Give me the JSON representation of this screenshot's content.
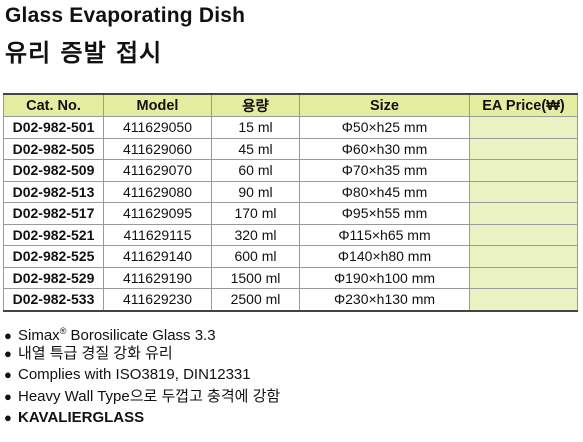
{
  "title_en": "Glass Evaporating Dish",
  "title_ko": "유리 증발 접시",
  "table": {
    "headers": {
      "cat_no": "Cat. No.",
      "model": "Model",
      "capacity": "용량",
      "size": "Size",
      "price": "EA Price(₩)"
    },
    "rows": [
      {
        "cat_no": "D02-982-501",
        "model": "411629050",
        "capacity": "15 ml",
        "size": "Φ50×h25 mm",
        "price": ""
      },
      {
        "cat_no": "D02-982-505",
        "model": "411629060",
        "capacity": "45 ml",
        "size": "Φ60×h30 mm",
        "price": ""
      },
      {
        "cat_no": "D02-982-509",
        "model": "411629070",
        "capacity": "60 ml",
        "size": "Φ70×h35 mm",
        "price": ""
      },
      {
        "cat_no": "D02-982-513",
        "model": "411629080",
        "capacity": "90 ml",
        "size": "Φ80×h45 mm",
        "price": ""
      },
      {
        "cat_no": "D02-982-517",
        "model": "411629095",
        "capacity": "170 ml",
        "size": "Φ95×h55 mm",
        "price": ""
      },
      {
        "cat_no": "D02-982-521",
        "model": "411629115",
        "capacity": "320 ml",
        "size": "Φ115×h65 mm",
        "price": ""
      },
      {
        "cat_no": "D02-982-525",
        "model": "411629140",
        "capacity": "600 ml",
        "size": "Φ140×h80 mm",
        "price": ""
      },
      {
        "cat_no": "D02-982-529",
        "model": "411629190",
        "capacity": "1500 ml",
        "size": "Φ190×h100 mm",
        "price": ""
      },
      {
        "cat_no": "D02-982-533",
        "model": "411629230",
        "capacity": "2500 ml",
        "size": "Φ230×h130 mm",
        "price": ""
      }
    ]
  },
  "notes": {
    "bullet": "●",
    "simax_brand": "Simax",
    "registered_mark": "®",
    "simax_rest": " Borosilicate Glass 3.3",
    "heat_resistant": "내열 특급 경질 강화 유리",
    "complies": "Complies with ISO3819, DIN12331",
    "heavy_wall": "Heavy Wall Type으로 두껍고 충격에 강함",
    "brand": "KAVALIERGLASS"
  },
  "colors": {
    "header_bg": "#e3ec9f",
    "price_bg": "#e9f2c0"
  }
}
